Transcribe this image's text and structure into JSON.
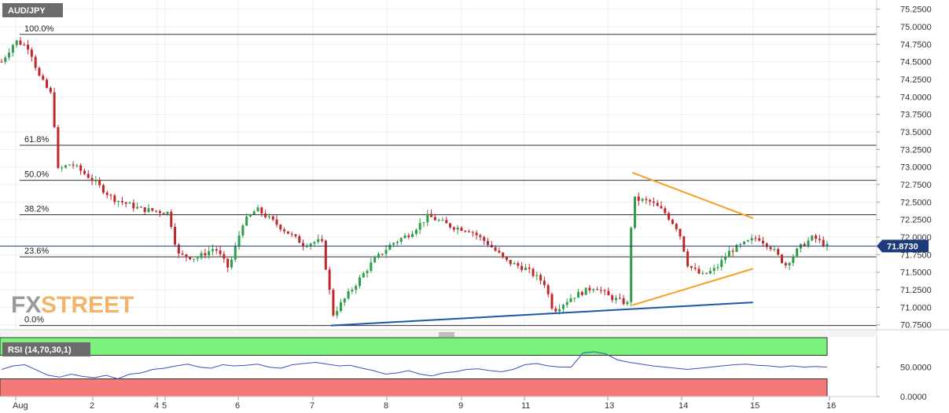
{
  "symbol": "AUD/JPY",
  "last_price": "71.8730",
  "logo": {
    "part1": "FX",
    "part2": "STREET"
  },
  "colors": {
    "bull": "#2e9e4a",
    "bear": "#c0272d",
    "trend_orange": "#f5a020",
    "trend_blue": "#1c56a8",
    "rsi_line": "#3b4fc4",
    "rsi_overbought": "#7cf27c",
    "rsi_oversold": "#f47a7a",
    "price_tag": "#1f3a7a"
  },
  "chart_data": {
    "type": "candlestick",
    "price_axis": {
      "ticks": [
        "75.2500",
        "75.0000",
        "74.7500",
        "74.5000",
        "74.2500",
        "74.0000",
        "73.7500",
        "73.5000",
        "73.2500",
        "73.0000",
        "72.7500",
        "72.5000",
        "72.2500",
        "72.0000",
        "71.7500",
        "71.5000",
        "71.2500",
        "71.0000",
        "70.7500"
      ],
      "range": [
        70.68,
        75.38
      ]
    },
    "x_ticks": [
      "Aug",
      "2",
      "4",
      "5",
      "6",
      "7",
      "8",
      "9",
      "11",
      "13",
      "14",
      "15",
      "16"
    ],
    "fibonacci": [
      {
        "label": "100.0%",
        "price": 74.89
      },
      {
        "label": "61.8%",
        "price": 73.31
      },
      {
        "label": "50.0%",
        "price": 72.81
      },
      {
        "label": "38.2%",
        "price": 72.32
      },
      {
        "label": "23.6%",
        "price": 71.72
      },
      {
        "label": "0.0%",
        "price": 70.74
      }
    ],
    "trendlines": [
      {
        "name": "triangle-upper",
        "points": [
          [
            13.6,
            72.92
          ],
          [
            16.2,
            72.27
          ]
        ]
      },
      {
        "name": "triangle-lower",
        "points": [
          [
            13.6,
            71.03
          ],
          [
            16.2,
            71.55
          ]
        ]
      },
      {
        "name": "support",
        "points": [
          [
            7.1,
            70.74
          ],
          [
            16.2,
            71.07
          ]
        ]
      }
    ],
    "anchors": [
      [
        0.0,
        74.5
      ],
      [
        0.3,
        74.8
      ],
      [
        0.6,
        74.7
      ],
      [
        0.8,
        74.3
      ],
      [
        1.1,
        74.0
      ],
      [
        1.2,
        72.95
      ],
      [
        1.5,
        73.05
      ],
      [
        1.9,
        72.85
      ],
      [
        2.4,
        72.55
      ],
      [
        3.0,
        72.4
      ],
      [
        3.6,
        72.35
      ],
      [
        3.8,
        71.75
      ],
      [
        4.2,
        71.7
      ],
      [
        4.6,
        71.85
      ],
      [
        4.9,
        71.55
      ],
      [
        5.2,
        72.2
      ],
      [
        5.5,
        72.4
      ],
      [
        6.0,
        72.15
      ],
      [
        6.5,
        71.9
      ],
      [
        6.9,
        71.95
      ],
      [
        7.15,
        70.9
      ],
      [
        7.6,
        71.3
      ],
      [
        8.0,
        71.65
      ],
      [
        8.4,
        71.9
      ],
      [
        8.8,
        72.05
      ],
      [
        9.2,
        72.3
      ],
      [
        9.7,
        72.15
      ],
      [
        10.1,
        72.1
      ],
      [
        10.5,
        71.9
      ],
      [
        10.9,
        71.65
      ],
      [
        11.3,
        71.55
      ],
      [
        11.7,
        71.35
      ],
      [
        11.9,
        70.95
      ],
      [
        12.3,
        71.15
      ],
      [
        12.8,
        71.3
      ],
      [
        13.1,
        71.15
      ],
      [
        13.5,
        71.05
      ],
      [
        13.6,
        72.55
      ],
      [
        14.0,
        72.5
      ],
      [
        14.3,
        72.35
      ],
      [
        14.6,
        72.1
      ],
      [
        14.8,
        71.6
      ],
      [
        15.1,
        71.45
      ],
      [
        15.4,
        71.55
      ],
      [
        15.7,
        71.8
      ],
      [
        16.0,
        71.9
      ],
      [
        16.3,
        72.0
      ],
      [
        16.6,
        71.85
      ],
      [
        16.9,
        71.6
      ],
      [
        17.2,
        71.85
      ],
      [
        17.5,
        72.0
      ],
      [
        17.8,
        71.87
      ]
    ],
    "rsi": {
      "label": "RSI (14,70,30,1)",
      "ticks": [
        "50.0000",
        "0.0000"
      ],
      "range": [
        0,
        100
      ],
      "overbought": 70,
      "oversold": 30,
      "values": [
        46,
        52,
        54,
        45,
        36,
        33,
        38,
        34,
        32,
        36,
        30,
        38,
        40,
        46,
        48,
        52,
        55,
        50,
        48,
        54,
        52,
        53,
        55,
        50,
        48,
        54,
        56,
        58,
        55,
        52,
        53,
        48,
        44,
        38,
        40,
        44,
        38,
        35,
        40,
        42,
        46,
        47,
        44,
        42,
        46,
        54,
        56,
        52,
        50,
        50,
        74,
        76,
        72,
        62,
        58,
        55,
        52,
        50,
        48,
        46,
        48,
        50,
        52,
        54,
        55,
        53,
        52,
        50,
        52,
        50,
        51,
        50
      ]
    }
  }
}
